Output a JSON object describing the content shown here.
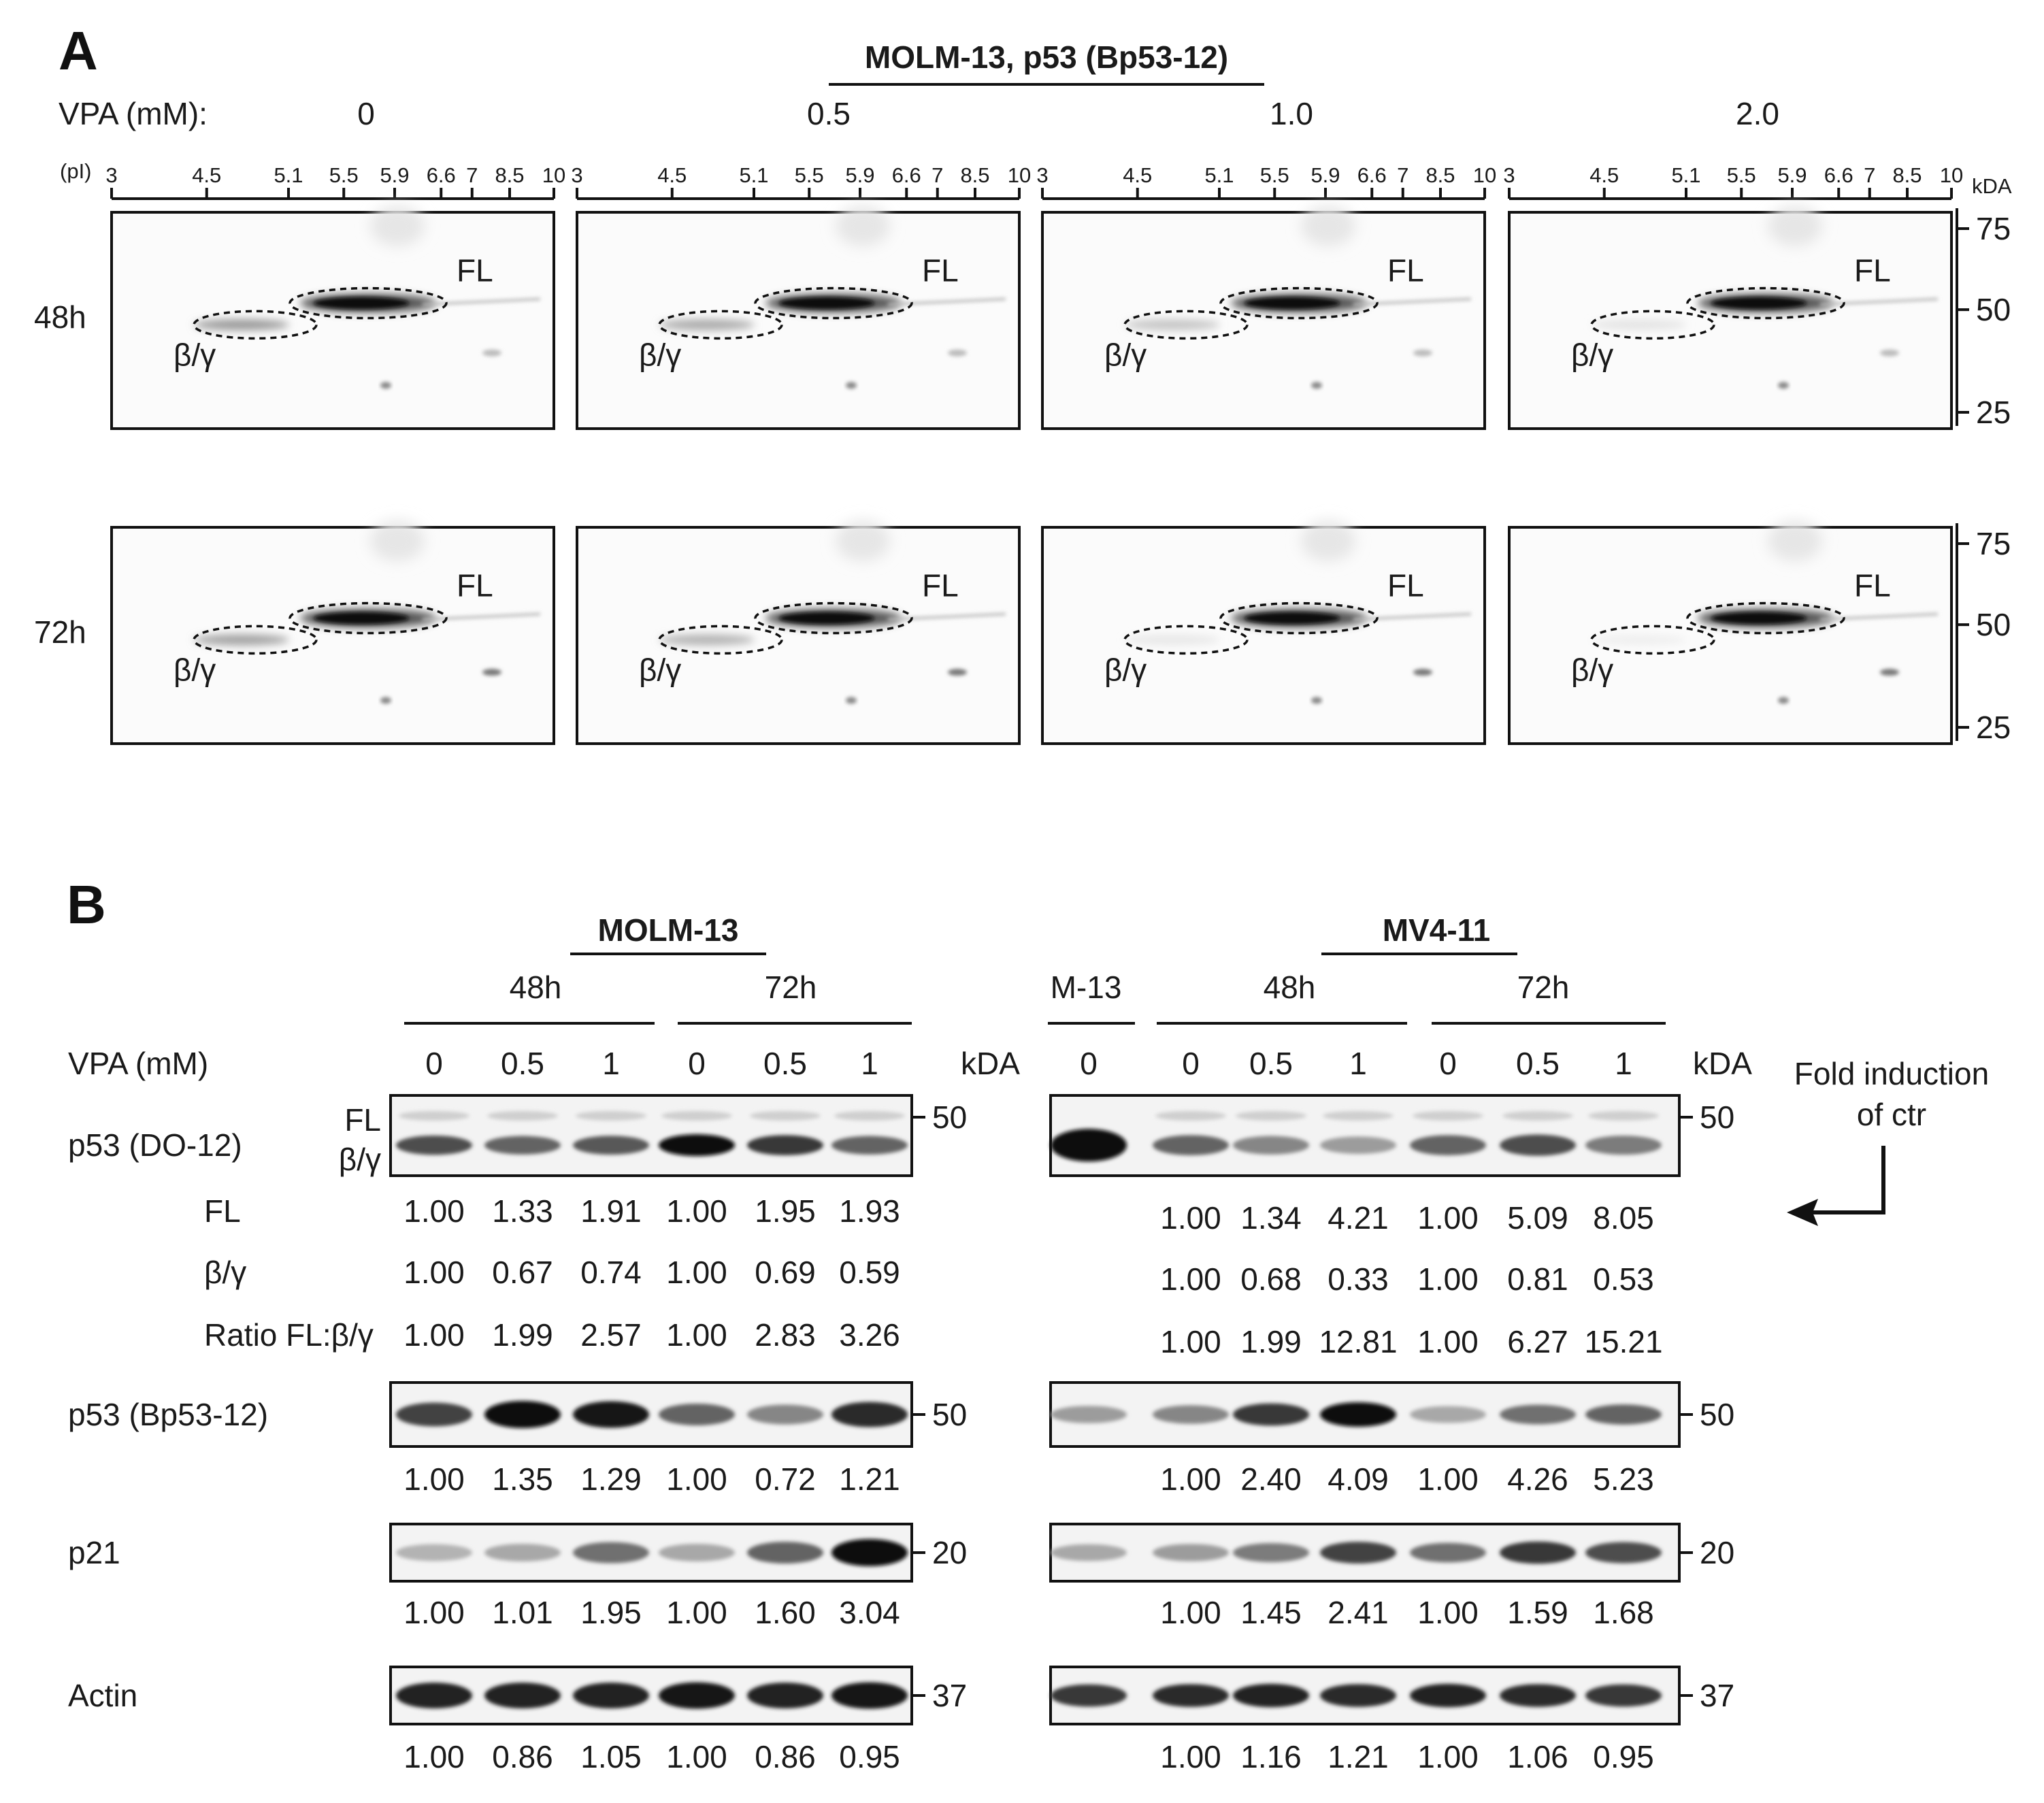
{
  "panel_a": {
    "letter": "A",
    "header": "MOLM-13, p53 (Bp53-12)",
    "vpa_label": "VPA (mM):",
    "concentrations": [
      "0",
      "0.5",
      "1.0",
      "2.0"
    ],
    "pi_label": "(pI)",
    "pi_ticks": [
      "3",
      "4.5",
      "5.1",
      "5.5",
      "5.9",
      "6.6",
      "7",
      "8.5",
      "10"
    ],
    "pi_values": [
      3,
      4.5,
      5.1,
      5.5,
      5.9,
      6.6,
      7,
      8.5,
      10
    ],
    "kda_label": "kDA",
    "kda_ticks": [
      "75",
      "50",
      "25"
    ],
    "rows": [
      {
        "time": "48h",
        "fl": "FL",
        "bg": "β/γ",
        "bg_intensity": [
          0.55,
          0.45,
          0.3,
          0.12
        ]
      },
      {
        "time": "72h",
        "fl": "FL",
        "bg": "β/γ",
        "bg_intensity": [
          0.5,
          0.4,
          0.1,
          0.06
        ]
      }
    ]
  },
  "panel_b": {
    "letter": "B",
    "vpa_label": "VPA (mM)",
    "kda_label": "kDA",
    "fold_note": [
      "Fold induction",
      "of ctr"
    ],
    "molm13": {
      "header": "MOLM-13",
      "times": [
        "48h",
        "72h"
      ],
      "lanes": [
        "0",
        "0.5",
        "1",
        "0",
        "0.5",
        "1"
      ]
    },
    "mv411": {
      "header": "MV4-11",
      "ref_label": "M-13",
      "ref_lane": "0",
      "times": [
        "48h",
        "72h"
      ],
      "lanes": [
        "0",
        "0.5",
        "1",
        "0",
        "0.5",
        "1"
      ]
    },
    "blots": [
      {
        "name": "p53 (DO-12)",
        "band_labels": [
          "FL",
          "β/γ"
        ],
        "kda": "50",
        "quant_rows": [
          {
            "label": "FL",
            "molm13": [
              "1.00",
              "1.33",
              "1.91",
              "1.00",
              "1.95",
              "1.93"
            ],
            "mv411": [
              "1.00",
              "1.34",
              "4.21",
              "1.00",
              "5.09",
              "8.05"
            ]
          },
          {
            "label": "β/γ",
            "molm13": [
              "1.00",
              "0.67",
              "0.74",
              "1.00",
              "0.69",
              "0.59"
            ],
            "mv411": [
              "1.00",
              "0.68",
              "0.33",
              "1.00",
              "0.81",
              "0.53"
            ]
          },
          {
            "label": "Ratio FL:β/γ",
            "molm13": [
              "1.00",
              "1.99",
              "2.57",
              "1.00",
              "2.83",
              "3.26"
            ],
            "mv411": [
              "1.00",
              "1.99",
              "12.81",
              "1.00",
              "6.27",
              "15.21"
            ]
          }
        ]
      },
      {
        "name": "p53 (Bp53-12)",
        "kda": "50",
        "quant_rows": [
          {
            "label": "",
            "molm13": [
              "1.00",
              "1.35",
              "1.29",
              "1.00",
              "0.72",
              "1.21"
            ],
            "mv411": [
              "1.00",
              "2.40",
              "4.09",
              "1.00",
              "4.26",
              "5.23"
            ]
          }
        ]
      },
      {
        "name": "p21",
        "kda": "20",
        "quant_rows": [
          {
            "label": "",
            "molm13": [
              "1.00",
              "1.01",
              "1.95",
              "1.00",
              "1.60",
              "3.04"
            ],
            "mv411": [
              "1.00",
              "1.45",
              "2.41",
              "1.00",
              "1.59",
              "1.68"
            ]
          }
        ]
      },
      {
        "name": "Actin",
        "kda": "37",
        "quant_rows": [
          {
            "label": "",
            "molm13": [
              "1.00",
              "0.86",
              "1.05",
              "1.00",
              "0.86",
              "0.95"
            ],
            "mv411": [
              "1.00",
              "1.16",
              "1.21",
              "1.00",
              "1.06",
              "0.95"
            ]
          }
        ]
      }
    ]
  }
}
